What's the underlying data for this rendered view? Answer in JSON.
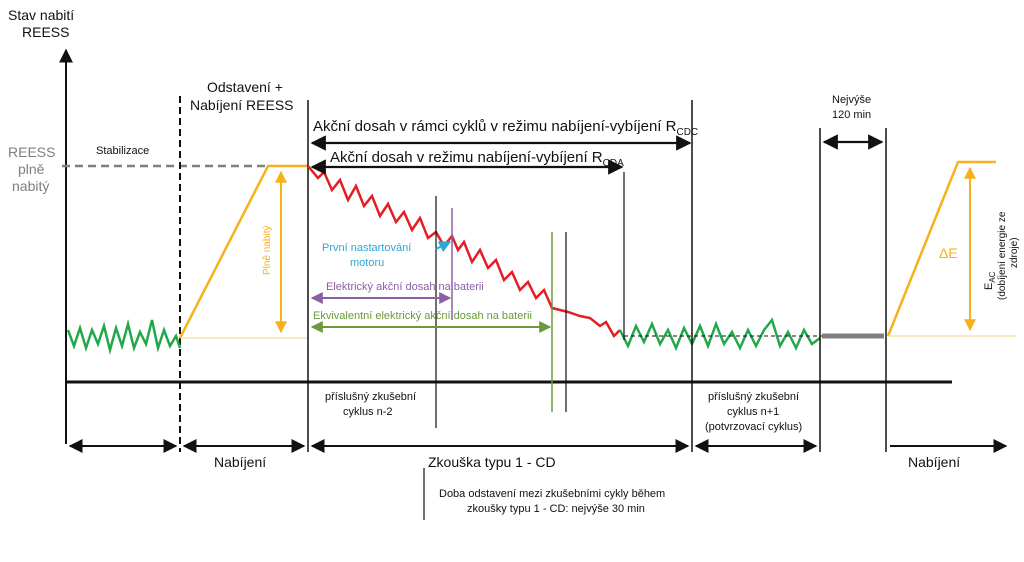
{
  "y_axis": {
    "title_line1": "Stav nabití",
    "title_line2": "REESS",
    "full_label_line1": "REESS",
    "full_label_line2": "plně",
    "full_label_line3": "nabitý"
  },
  "phases": {
    "stabilization": "Stabilizace",
    "parking_line1": "Odstavení +",
    "parking_line2": "Nabíjení  REESS",
    "max_wait_line1": "Nejvýše",
    "max_wait_line2": "120 min"
  },
  "ranges": {
    "cdc_main": "Akční dosah v rámci cyklů v režimu nabíjení-vybíjení R",
    "cdc_sub": "CDC",
    "cda_main": "Akční dosah v režimu nabíjení-vybíjení R",
    "cda_sub": "CDA"
  },
  "annotations": {
    "full_charged": "Plně nabitý",
    "first_engine_start_line1": "První nastartování",
    "first_engine_start_line2": "motoru",
    "electric_range": "Elektrický akční dosah na baterii",
    "equivalent_electric_range": "Ekvivalentní elektrický akční dosah na baterii",
    "delta_e": "ΔE",
    "e_ac_main": "E",
    "e_ac_sub": "AC",
    "e_ac_desc_line1": "(dobíjení energie ze",
    "e_ac_desc_line2": "zdroje)"
  },
  "cycles": {
    "n2_line1": "příslušný  zkušební",
    "n2_line2": "cyklus n-2",
    "n1_line1": "příslušný  zkušební",
    "n1_line2": "cyklus n+1",
    "n1_line3": "(potvrzovací cyklus)"
  },
  "bottom": {
    "charging_left": "Nabíjení",
    "test_type": "Zkouška typu 1 - CD",
    "charging_right": "Nabíjení",
    "note_line1": "Doba odstavení  mezi zkušebními  cykly během",
    "note_line2": "zkoušky typu 1 - CD: nejvýše 30 min"
  },
  "colors": {
    "green_trace": "#22a84a",
    "red_trace": "#e31e24",
    "orange": "#f5b21b",
    "purple": "#8a5fa8",
    "cyan": "#2aa8d8",
    "olive": "#6b9a3a",
    "gray": "#7f7f7f"
  }
}
